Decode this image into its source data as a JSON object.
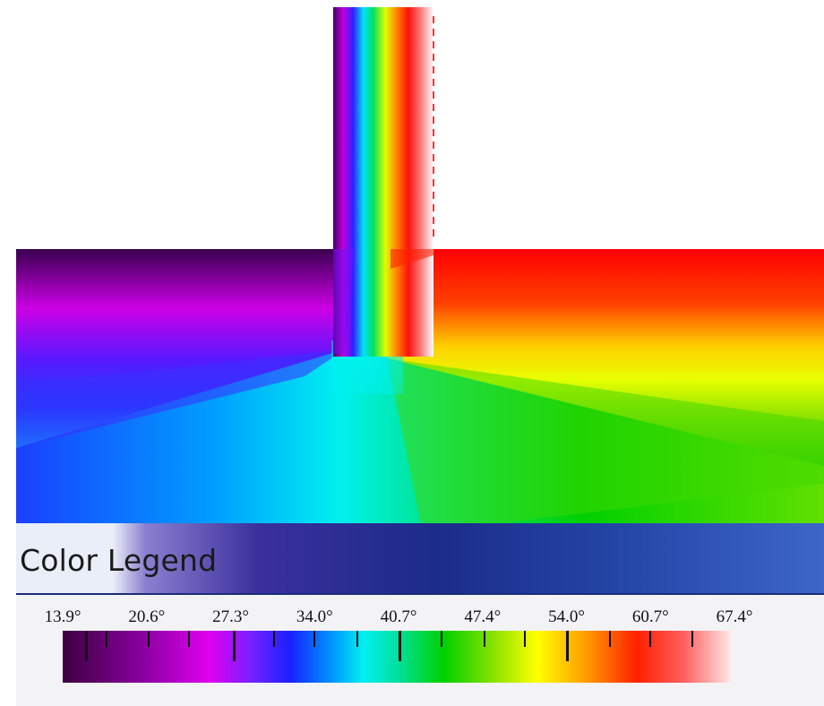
{
  "legend": {
    "title": "Color Legend",
    "ticks": [
      "13.9°",
      "20.6°",
      "27.3°",
      "34.0°",
      "40.7°",
      "47.4°",
      "54.0°",
      "60.7°",
      "67.4°"
    ]
  },
  "colors": {
    "cold": "#3d0040",
    "mid": "#00f0f0",
    "hot": "#ff2000",
    "legend_band": "#1c2c8a"
  }
}
